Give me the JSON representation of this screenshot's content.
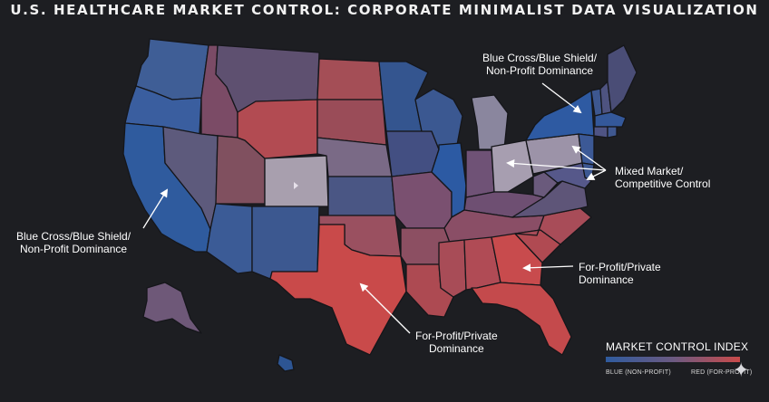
{
  "title": "U.S. HEALTHCARE MARKET CONTROL: CORPORATE MINIMALIST DATA VISUALIZATION",
  "annotations": {
    "bcbs_northeast": "Blue Cross/Blue Shield/\nNon-Profit Dominance",
    "mixed_market": "Mixed Market/\nCompetitive Control",
    "bcbs_west": "Blue Cross/Blue Shield/\nNon-Profit Dominance",
    "forprofit_southeast": "For-Profit/Private\nDominance",
    "forprofit_texas": "For-Profit/Private\nDominance"
  },
  "legend": {
    "title": "MARKET CONTROL INDEX",
    "low_label": "BLUE (NON-PROFIT)",
    "high_label": "RED (FOR-PROFIT)",
    "colors": [
      "#2f5b9e",
      "#6b5a82",
      "#c94a4a"
    ]
  },
  "colors": {
    "background": "#1d1e22",
    "state_border": "#15161a",
    "text": "#ffffff"
  },
  "icons": {
    "sparkle": "✦"
  },
  "states": [
    {
      "id": "WA",
      "value": 0.15,
      "color": "#3f5e96"
    },
    {
      "id": "OR",
      "value": 0.1,
      "color": "#3a5e9f"
    },
    {
      "id": "CA",
      "value": 0.05,
      "color": "#2f5b9e"
    },
    {
      "id": "ID",
      "value": 0.6,
      "color": "#7b4b66"
    },
    {
      "id": "NV",
      "value": 0.35,
      "color": "#5d5a7c"
    },
    {
      "id": "UT",
      "value": 0.65,
      "color": "#80505f"
    },
    {
      "id": "AZ",
      "value": 0.1,
      "color": "#3b5b96"
    },
    {
      "id": "MT",
      "value": 0.45,
      "color": "#5e5070"
    },
    {
      "id": "WY",
      "value": 0.9,
      "color": "#b24b52"
    },
    {
      "id": "CO",
      "value": 0.5,
      "color": "#a89fae"
    },
    {
      "id": "NM",
      "value": 0.15,
      "color": "#3c5890"
    },
    {
      "id": "ND",
      "value": 0.85,
      "color": "#a44e56"
    },
    {
      "id": "SD",
      "value": 0.8,
      "color": "#9a4c58"
    },
    {
      "id": "NE",
      "value": 0.45,
      "color": "#7a6a86"
    },
    {
      "id": "KS",
      "value": 0.3,
      "color": "#4a5684"
    },
    {
      "id": "OK",
      "value": 0.7,
      "color": "#9a5060"
    },
    {
      "id": "TX",
      "value": 0.95,
      "color": "#c94a4a"
    },
    {
      "id": "MN",
      "value": 0.1,
      "color": "#34558f"
    },
    {
      "id": "IA",
      "value": 0.25,
      "color": "#434f82"
    },
    {
      "id": "MO",
      "value": 0.6,
      "color": "#7a5070"
    },
    {
      "id": "AR",
      "value": 0.7,
      "color": "#8c4f62"
    },
    {
      "id": "LA",
      "value": 0.85,
      "color": "#ad4a52"
    },
    {
      "id": "WI",
      "value": 0.2,
      "color": "#3b5891"
    },
    {
      "id": "IL",
      "value": 0.05,
      "color": "#2c5aa3"
    },
    {
      "id": "MI",
      "value": 0.5,
      "color": "#8a869e"
    },
    {
      "id": "IN",
      "value": 0.55,
      "color": "#6f5276"
    },
    {
      "id": "OH",
      "value": 0.5,
      "color": "#a79eb0"
    },
    {
      "id": "KY",
      "value": 0.55,
      "color": "#6e4f72"
    },
    {
      "id": "TN",
      "value": 0.65,
      "color": "#8a4e66"
    },
    {
      "id": "MS",
      "value": 0.85,
      "color": "#a84c57"
    },
    {
      "id": "AL",
      "value": 0.85,
      "color": "#b04b55"
    },
    {
      "id": "GA",
      "value": 0.95,
      "color": "#c84b4d"
    },
    {
      "id": "FL",
      "value": 0.9,
      "color": "#c44a4c"
    },
    {
      "id": "SC",
      "value": 0.85,
      "color": "#b04a52"
    },
    {
      "id": "NC",
      "value": 0.8,
      "color": "#a84c58"
    },
    {
      "id": "VA",
      "value": 0.5,
      "color": "#5e5578"
    },
    {
      "id": "WV",
      "value": 0.45,
      "color": "#6a5a7c"
    },
    {
      "id": "PA",
      "value": 0.5,
      "color": "#9c93a8"
    },
    {
      "id": "NY",
      "value": 0.05,
      "color": "#2e5aa2"
    },
    {
      "id": "NJ",
      "value": 0.2,
      "color": "#3c5996"
    },
    {
      "id": "DE",
      "value": 0.2,
      "color": "#3d5892"
    },
    {
      "id": "MD",
      "value": 0.3,
      "color": "#56588a"
    },
    {
      "id": "VT",
      "value": 0.15,
      "color": "#3d5790"
    },
    {
      "id": "NH",
      "value": 0.3,
      "color": "#4e5380"
    },
    {
      "id": "ME",
      "value": 0.35,
      "color": "#4a4d76"
    },
    {
      "id": "MA",
      "value": 0.1,
      "color": "#34589a"
    },
    {
      "id": "CT",
      "value": 0.3,
      "color": "#4f5484"
    },
    {
      "id": "RI",
      "value": 0.2,
      "color": "#3f5890"
    },
    {
      "id": "AK",
      "value": 0.5,
      "color": "#6e5878"
    },
    {
      "id": "HI",
      "value": 0.1,
      "color": "#2d5593"
    }
  ]
}
